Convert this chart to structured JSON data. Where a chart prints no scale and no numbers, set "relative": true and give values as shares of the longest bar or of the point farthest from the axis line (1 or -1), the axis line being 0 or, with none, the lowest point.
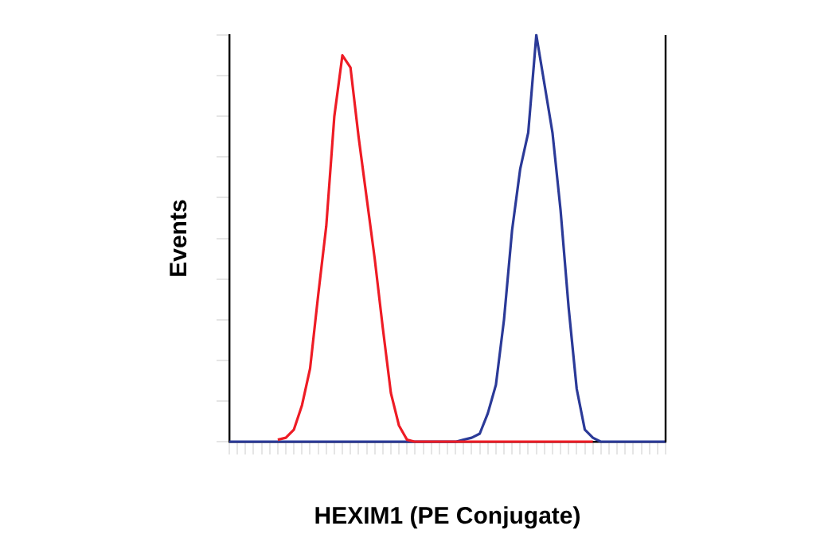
{
  "chart_data": {
    "type": "line",
    "relative": true,
    "xlabel": "HEXIM1 (PE Conjugate)",
    "ylabel": "Events",
    "grid": false,
    "legend": false,
    "marker": "none",
    "line_style": "solid",
    "categories": [
      null,
      null,
      null,
      null,
      null,
      null,
      null,
      null,
      null,
      null,
      null,
      null,
      null,
      null,
      null,
      null,
      null,
      null,
      null,
      null,
      null,
      null,
      null,
      null,
      null,
      null,
      null,
      null,
      null,
      null,
      null,
      null,
      null,
      null,
      null,
      null,
      null,
      null,
      null,
      null,
      null,
      null,
      null,
      null,
      null,
      null,
      null,
      null,
      null,
      null,
      null,
      null,
      null,
      null,
      null
    ],
    "series": [
      {
        "color": "#ee1c25",
        "values": [
          null,
          null,
          null,
          null,
          null,
          null,
          0.005,
          0.01,
          0.03,
          0.09,
          0.18,
          0.36,
          0.53,
          0.8,
          0.95,
          0.92,
          0.75,
          0.6,
          0.45,
          0.28,
          0.12,
          0.04,
          0.005,
          0,
          0,
          0,
          0,
          0,
          0,
          0,
          0,
          0,
          0,
          0,
          0,
          0,
          0,
          0,
          0,
          0,
          0,
          0,
          0,
          0,
          0,
          0,
          null,
          null,
          null,
          null,
          null,
          null,
          null,
          null,
          null
        ]
      },
      {
        "color": "#2b3a98",
        "values": [
          0,
          0,
          0,
          0,
          0,
          0,
          0,
          0,
          0,
          0,
          0,
          0,
          0,
          0,
          0,
          0,
          0,
          0,
          0,
          0,
          0,
          0,
          0,
          0,
          0,
          0,
          0,
          0,
          0,
          0.005,
          0.01,
          0.02,
          0.07,
          0.14,
          0.3,
          0.52,
          0.67,
          0.76,
          1,
          0.88,
          0.76,
          0.57,
          0.33,
          0.13,
          0.03,
          0.01,
          0,
          0,
          0,
          0,
          0,
          0,
          0,
          0,
          0
        ]
      }
    ]
  }
}
